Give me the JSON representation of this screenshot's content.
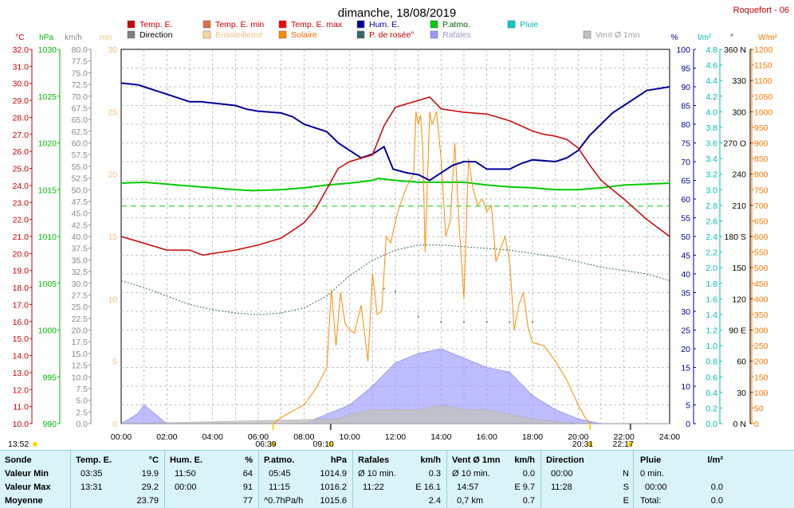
{
  "title": "dimanche, 18/08/2019",
  "station": "Roquefort - 06",
  "legend": [
    {
      "label": "Temp. E.",
      "color": "#cc0000",
      "text_color": "#cc0000"
    },
    {
      "label": "Direction",
      "color": "#808080",
      "text_color": "#000000"
    },
    {
      "label": "Temp. E. min",
      "color": "#e07040",
      "text_color": "#cc0000"
    },
    {
      "label": "Ensoleilleme",
      "color": "#ffd8a0",
      "text_color": "#f0c080"
    },
    {
      "label": "Temp. E. max",
      "color": "#ff0000",
      "text_color": "#cc0000"
    },
    {
      "label": "Solaire",
      "color": "#ff8c00",
      "text_color": "#ff6600"
    },
    {
      "label": "Hum. E.",
      "color": "#000099",
      "text_color": "#000099"
    },
    {
      "label": "P. de rosée°",
      "color": "#336666",
      "text_color": "#cc0000"
    },
    {
      "label": "P.atmo.",
      "color": "#00cc00",
      "text_color": "#006600"
    },
    {
      "label": "Rafales",
      "color": "#9999ff",
      "text_color": "#9999cc"
    },
    {
      "label": "Pluie",
      "color": "#00cccc",
      "text_color": "#00bbbb"
    },
    {
      "label": "Vent Ø 1mn",
      "color": "#c0c0c0",
      "text_color": "#a0a0a0"
    }
  ],
  "axes": {
    "temp": {
      "unit": "°C",
      "ticks": [
        "32.0",
        "31.0",
        "30.0",
        "29.0",
        "28.0",
        "27.0",
        "26.0",
        "25.0",
        "24.0",
        "23.0",
        "22.0",
        "21.0",
        "20.0",
        "19.0",
        "18.0",
        "17.0",
        "16.0",
        "15.0",
        "14.0",
        "13.0",
        "12.0",
        "11.0",
        "10.0"
      ]
    },
    "hpa": {
      "unit": "hPa",
      "ticks": [
        "1030",
        "1025",
        "1020",
        "1015",
        "1010",
        "1005",
        "1000",
        "995",
        "990"
      ]
    },
    "kmh": {
      "unit": "km/h",
      "ticks": [
        "80.0",
        "77.5",
        "75.0",
        "72.5",
        "70.0",
        "67.5",
        "65.0",
        "62.5",
        "60.0",
        "57.5",
        "55.0",
        "52.5",
        "50.0",
        "47.5",
        "45.0",
        "42.5",
        "40.0",
        "37.5",
        "35.0",
        "32.5",
        "30.0",
        "27.5",
        "25.0",
        "22.5",
        "20.0",
        "17.5",
        "15.0",
        "12.5",
        "10.0",
        "7.5",
        "5.0",
        "2.5",
        "0.0"
      ]
    },
    "min": {
      "unit": "min",
      "ticks": [
        "30",
        "25",
        "20",
        "15",
        "10",
        "5",
        "0"
      ]
    },
    "pct": {
      "unit": "%",
      "ticks": [
        "100",
        "95",
        "90",
        "85",
        "80",
        "75",
        "70",
        "65",
        "60",
        "55",
        "50",
        "45",
        "40",
        "35",
        "30",
        "25",
        "20",
        "15",
        "10",
        "5",
        "0"
      ]
    },
    "lm2": {
      "unit": "l/m²",
      "ticks": [
        "4.8",
        "4.6",
        "4.4",
        "4.2",
        "4.0",
        "3.8",
        "3.6",
        "3.4",
        "3.2",
        "3.0",
        "2.8",
        "2.6",
        "2.4",
        "2.2",
        "2.0",
        "1.8",
        "1.6",
        "1.4",
        "1.2",
        "1.0",
        "0.8",
        "0.6",
        "0.4",
        "0.2",
        "0.0"
      ]
    },
    "deg": {
      "unit": "°",
      "ticks": [
        "360 N",
        "330",
        "300",
        "270 O",
        "240",
        "210",
        "180 S",
        "150",
        "120",
        "90 E",
        "60",
        "30",
        "0 N"
      ]
    },
    "wm2": {
      "unit": "W/m²",
      "ticks": [
        "1200",
        "1150",
        "1100",
        "1050",
        "1000",
        "950",
        "900",
        "850",
        "800",
        "750",
        "700",
        "650",
        "600",
        "550",
        "500",
        "450",
        "400",
        "350",
        "300",
        "250",
        "200",
        "150",
        "100",
        "50",
        "0"
      ]
    },
    "time": {
      "ticks": [
        "00:00",
        "02:00",
        "04:00",
        "06:00",
        "08:00",
        "10:00",
        "12:00",
        "14:00",
        "16:00",
        "18:00",
        "20:00",
        "22:00",
        "24:00"
      ]
    }
  },
  "markers": {
    "left": "13:52",
    "sunrise": "06:39",
    "t1": "09:10",
    "sunset": "20:31",
    "t2": "22:17"
  },
  "chart_data": {
    "type": "line",
    "title": "dimanche, 18/08/2019",
    "x_unit": "hour",
    "xlim": [
      0,
      24
    ],
    "series": [
      {
        "name": "Temp. E.",
        "unit": "°C",
        "points": [
          [
            0,
            21.0
          ],
          [
            1,
            20.6
          ],
          [
            2,
            20.2
          ],
          [
            3,
            20.2
          ],
          [
            3.58,
            19.9
          ],
          [
            4,
            20.0
          ],
          [
            5,
            20.2
          ],
          [
            6,
            20.5
          ],
          [
            7,
            20.9
          ],
          [
            8,
            21.8
          ],
          [
            8.5,
            22.6
          ],
          [
            9,
            23.8
          ],
          [
            9.5,
            25.0
          ],
          [
            10,
            25.4
          ],
          [
            10.5,
            25.6
          ],
          [
            11,
            25.8
          ],
          [
            11.5,
            27.5
          ],
          [
            12,
            28.6
          ],
          [
            12.5,
            28.8
          ],
          [
            13,
            29.0
          ],
          [
            13.5,
            29.2
          ],
          [
            14,
            28.5
          ],
          [
            15,
            28.3
          ],
          [
            16,
            28.2
          ],
          [
            17,
            27.8
          ],
          [
            17.5,
            27.5
          ],
          [
            18,
            27.2
          ],
          [
            18.5,
            27.0
          ],
          [
            19,
            26.9
          ],
          [
            19.5,
            26.7
          ],
          [
            20,
            26.2
          ],
          [
            20.5,
            25.2
          ],
          [
            21,
            24.3
          ],
          [
            22,
            23.2
          ],
          [
            23,
            22.0
          ],
          [
            24,
            21.0
          ]
        ]
      },
      {
        "name": "Hum. E.",
        "unit": "%",
        "points": [
          [
            0,
            91
          ],
          [
            0.75,
            90.5
          ],
          [
            1,
            90
          ],
          [
            1.5,
            89
          ],
          [
            2.5,
            87
          ],
          [
            3,
            86
          ],
          [
            3.5,
            86
          ],
          [
            5,
            85
          ],
          [
            5.5,
            84
          ],
          [
            6,
            83.5
          ],
          [
            7,
            83
          ],
          [
            7.5,
            82
          ],
          [
            8,
            80
          ],
          [
            8.5,
            79
          ],
          [
            9,
            78
          ],
          [
            9.5,
            75
          ],
          [
            10,
            73
          ],
          [
            10.5,
            71
          ],
          [
            11,
            72
          ],
          [
            11.5,
            74
          ],
          [
            11.9,
            68
          ],
          [
            12.5,
            67
          ],
          [
            13,
            66.5
          ],
          [
            13.5,
            65
          ],
          [
            14,
            67
          ],
          [
            14.5,
            69
          ],
          [
            15,
            70
          ],
          [
            15.5,
            70
          ],
          [
            16,
            68
          ],
          [
            17,
            68
          ],
          [
            17.5,
            69.5
          ],
          [
            18,
            70.5
          ],
          [
            19,
            70
          ],
          [
            19.5,
            71
          ],
          [
            20,
            73
          ],
          [
            20.5,
            77
          ],
          [
            21,
            80
          ],
          [
            21.5,
            83
          ],
          [
            22,
            85
          ],
          [
            23,
            89
          ],
          [
            24,
            90
          ]
        ]
      },
      {
        "name": "P.atmo.",
        "unit": "hPa",
        "points": [
          [
            0,
            1015.7
          ],
          [
            1,
            1015.8
          ],
          [
            2,
            1015.6
          ],
          [
            3,
            1015.4
          ],
          [
            4,
            1015.2
          ],
          [
            5,
            1015.0
          ],
          [
            5.75,
            1014.9
          ],
          [
            7,
            1015.0
          ],
          [
            8,
            1015.2
          ],
          [
            9,
            1015.5
          ],
          [
            10,
            1015.7
          ],
          [
            11,
            1016.0
          ],
          [
            11.25,
            1016.2
          ],
          [
            12,
            1016.0
          ],
          [
            13,
            1015.8
          ],
          [
            14,
            1015.8
          ],
          [
            15,
            1015.8
          ],
          [
            16,
            1015.5
          ],
          [
            17,
            1015.3
          ],
          [
            18,
            1015.2
          ],
          [
            19,
            1015.0
          ],
          [
            20,
            1015.0
          ],
          [
            21,
            1015.2
          ],
          [
            22,
            1015.5
          ],
          [
            23,
            1015.6
          ],
          [
            24,
            1015.7
          ]
        ]
      },
      {
        "name": "P. de rosée°",
        "unit": "°C",
        "points": [
          [
            0,
            18.4
          ],
          [
            1,
            18.0
          ],
          [
            2,
            17.5
          ],
          [
            3,
            17.0
          ],
          [
            4,
            16.7
          ],
          [
            5,
            16.5
          ],
          [
            6,
            16.4
          ],
          [
            7,
            16.5
          ],
          [
            8,
            16.8
          ],
          [
            9,
            17.5
          ],
          [
            10,
            18.7
          ],
          [
            11,
            19.6
          ],
          [
            12,
            20.2
          ],
          [
            13,
            20.5
          ],
          [
            14,
            20.5
          ],
          [
            15,
            20.4
          ],
          [
            16,
            20.3
          ],
          [
            17,
            20.2
          ],
          [
            18,
            20.0
          ],
          [
            19,
            19.8
          ],
          [
            20,
            19.5
          ],
          [
            21,
            19.2
          ],
          [
            22,
            19.0
          ],
          [
            23,
            18.8
          ],
          [
            24,
            18.4
          ]
        ]
      },
      {
        "name": "Solaire",
        "unit": "W/m²",
        "points": [
          [
            6.65,
            0
          ],
          [
            7,
            20
          ],
          [
            8,
            60
          ],
          [
            8.5,
            110
          ],
          [
            9,
            180
          ],
          [
            9.2,
            430
          ],
          [
            9.4,
            250
          ],
          [
            9.6,
            420
          ],
          [
            9.8,
            320
          ],
          [
            10,
            300
          ],
          [
            10.2,
            290
          ],
          [
            10.5,
            380
          ],
          [
            10.8,
            200
          ],
          [
            11,
            480
          ],
          [
            11.2,
            350
          ],
          [
            11.4,
            360
          ],
          [
            11.6,
            600
          ],
          [
            11.8,
            580
          ],
          [
            12,
            650
          ],
          [
            12.2,
            700
          ],
          [
            12.5,
            760
          ],
          [
            12.8,
            800
          ],
          [
            12.9,
            1000
          ],
          [
            13.0,
            960
          ],
          [
            13.1,
            990
          ],
          [
            13.2,
            880
          ],
          [
            13.3,
            550
          ],
          [
            13.5,
            1000
          ],
          [
            13.6,
            960
          ],
          [
            13.8,
            1000
          ],
          [
            14.0,
            850
          ],
          [
            14.2,
            600
          ],
          [
            14.4,
            650
          ],
          [
            14.6,
            900
          ],
          [
            14.8,
            620
          ],
          [
            15,
            400
          ],
          [
            15.2,
            850
          ],
          [
            15.4,
            750
          ],
          [
            15.6,
            700
          ],
          [
            15.8,
            720
          ],
          [
            16,
            680
          ],
          [
            16.2,
            700
          ],
          [
            16.4,
            520
          ],
          [
            16.6,
            560
          ],
          [
            16.8,
            600
          ],
          [
            17,
            520
          ],
          [
            17.2,
            300
          ],
          [
            17.4,
            380
          ],
          [
            17.6,
            420
          ],
          [
            17.8,
            310
          ],
          [
            18,
            260
          ],
          [
            18.5,
            250
          ],
          [
            19,
            200
          ],
          [
            19.5,
            140
          ],
          [
            20,
            60
          ],
          [
            20.3,
            20
          ],
          [
            20.51,
            0
          ]
        ]
      },
      {
        "name": "Rafales",
        "unit": "km/h",
        "points": [
          [
            0.7,
            2
          ],
          [
            1,
            4
          ],
          [
            2,
            0
          ],
          [
            8,
            0
          ],
          [
            10,
            4
          ],
          [
            11,
            8
          ],
          [
            12,
            13
          ],
          [
            13,
            15
          ],
          [
            14,
            16
          ],
          [
            15,
            14
          ],
          [
            16,
            12
          ],
          [
            17,
            11
          ],
          [
            18,
            6
          ],
          [
            19,
            3
          ],
          [
            20,
            1
          ],
          [
            21,
            0
          ],
          [
            24,
            0
          ]
        ]
      },
      {
        "name": "Vent Ø 1mn",
        "unit": "km/h",
        "points": [
          [
            9.5,
            1
          ],
          [
            10,
            2
          ],
          [
            11,
            3
          ],
          [
            12,
            3
          ],
          [
            13,
            3
          ],
          [
            14,
            4
          ],
          [
            15,
            3
          ],
          [
            16,
            3
          ],
          [
            17,
            2
          ],
          [
            18,
            1
          ],
          [
            19,
            0.5
          ],
          [
            20,
            0
          ],
          [
            24,
            0
          ]
        ]
      },
      {
        "name": "Direction",
        "unit": "°",
        "points": [
          [
            11.5,
            130
          ],
          [
            12,
            127
          ],
          [
            13,
            103
          ],
          [
            14,
            98
          ],
          [
            15,
            98
          ],
          [
            16,
            98
          ],
          [
            17,
            98
          ],
          [
            18,
            98
          ]
        ]
      }
    ]
  },
  "table": {
    "headers": [
      "Sonde",
      "Temp. E.",
      "°C",
      "Hum. E.",
      "%",
      "P.atmo.",
      "hPa",
      "Rafales",
      "km/h",
      "Vent Ø 1mn",
      "km/h",
      "Direction",
      "",
      "Pluie",
      "l/m²"
    ],
    "rows": [
      {
        "label": "Valeur Min",
        "temp_t": "03:35",
        "temp_v": "19.9",
        "hum_t": "11:50",
        "hum_v": "64",
        "pat_t": "05:45",
        "pat_v": "1014.9",
        "raf_t": "Ø 10 min.",
        "raf_v": "0.3",
        "vent_t": "Ø 10 min.",
        "vent_v": "0.0",
        "dir_t": "00:00",
        "dir_v": "N",
        "pl_t": "0 min.",
        "pl_v": ""
      },
      {
        "label": "Valeur Max",
        "temp_t": "13:31",
        "temp_v": "29.2",
        "hum_t": "00:00",
        "hum_v": "91",
        "pat_t": "11:15",
        "pat_v": "1016.2",
        "raf_t": "11:22",
        "raf_v": "E 16.1",
        "vent_t": "14:57",
        "vent_v": "E 9.7",
        "dir_t": "11:28",
        "dir_v": "S",
        "pl_t": "00:00",
        "pl_v": "0.0"
      },
      {
        "label": "Moyenne",
        "temp_t": "",
        "temp_v": "23.79",
        "hum_t": "",
        "hum_v": "77",
        "pat_t": "^0.7hPa/h",
        "pat_v": "1015.6",
        "raf_t": "",
        "raf_v": "2.4",
        "vent_t": "0,7 km",
        "vent_v": "0.7",
        "dir_t": "",
        "dir_v": "E",
        "pl_t": "Total:",
        "pl_v": "0.0"
      }
    ]
  }
}
